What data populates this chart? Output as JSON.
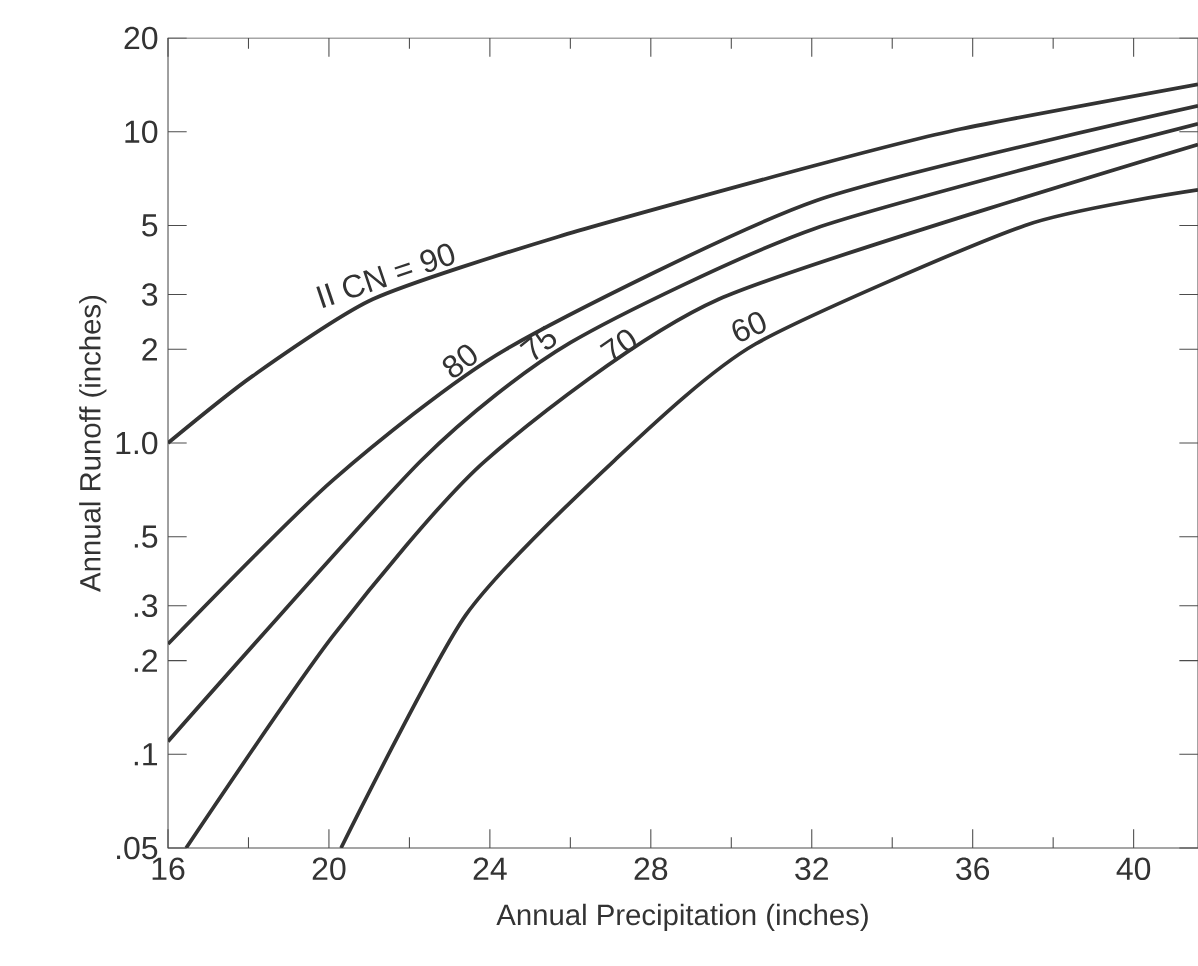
{
  "chart_data": {
    "type": "line",
    "xlabel": "Annual Precipitation (inches)",
    "ylabel": "Annual Runoff (inches)",
    "log": "y",
    "xlim": [
      16,
      41.6
    ],
    "ylim": [
      0.05,
      20
    ],
    "xticks": [
      16,
      20,
      24,
      28,
      32,
      36,
      40
    ],
    "yticks": [
      {
        "value": 0.05,
        "label": ".05"
      },
      {
        "value": 0.1,
        "label": ".1"
      },
      {
        "value": 0.2,
        "label": ".2"
      },
      {
        "value": 0.3,
        "label": ".3"
      },
      {
        "value": 0.5,
        "label": ".5"
      },
      {
        "value": 1,
        "label": "1.0"
      },
      2,
      3,
      5,
      10,
      20
    ],
    "grid": false,
    "marker": "none",
    "line_style": "solid",
    "series": [
      {
        "name": "II CN = 90",
        "color": "#333333",
        "x": [
          16,
          18.1,
          21.1,
          25.7,
          32.1,
          35.7,
          41.6
        ],
        "values": [
          1.0,
          1.64,
          2.9,
          4.6,
          7.8,
          10.2,
          14.2
        ]
      },
      {
        "name": "80",
        "color": "#333333",
        "x": [
          16,
          20.1,
          24.4,
          32.1,
          41.6
        ],
        "values": [
          0.226,
          0.76,
          2.0,
          6.0,
          12.1
        ]
      },
      {
        "name": "75",
        "color": "#333333",
        "x": [
          16,
          22.3,
          26.0,
          32.1,
          41.6
        ],
        "values": [
          0.11,
          0.88,
          2.1,
          4.9,
          10.6
        ]
      },
      {
        "name": "70",
        "color": "#333333",
        "x": [
          16.45,
          20.1,
          23.9,
          29.7,
          41.6
        ],
        "values": [
          0.05,
          0.24,
          0.88,
          2.9,
          9.1
        ]
      },
      {
        "name": "60",
        "color": "#333333",
        "x": [
          20.3,
          23.4,
          27.1,
          30.6,
          37.3,
          41.6
        ],
        "values": [
          0.05,
          0.28,
          0.88,
          2.08,
          5.0,
          6.5
        ]
      }
    ]
  }
}
